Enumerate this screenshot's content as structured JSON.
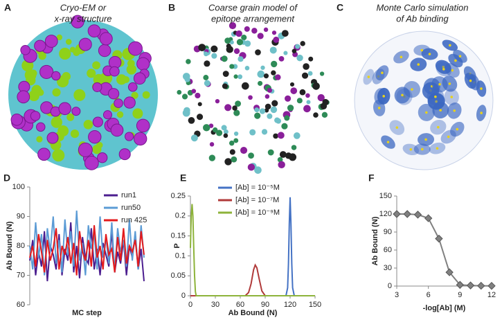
{
  "figure": {
    "panels": [
      {
        "label": "A",
        "caption": [
          "Cryo-EM or",
          "x-ray structure"
        ]
      },
      {
        "label": "B",
        "caption": [
          "Coarse grain model of",
          "epitope arrangement"
        ]
      },
      {
        "label": "C",
        "caption": [
          "Monte Carlo  simulation",
          "of Ab binding"
        ]
      }
    ]
  },
  "chart_data": [
    {
      "type": "line",
      "panel_label": "D",
      "x_label": "MC step",
      "y_label": "Ab Bound (N)",
      "ylim": [
        60,
        100
      ],
      "yticks": [
        60,
        70,
        80,
        90,
        100
      ],
      "legend": "top-right",
      "series": [
        {
          "name": "run1",
          "color": "#4b1d8f",
          "values": [
            75,
            82,
            70,
            78,
            73,
            85,
            68,
            80,
            77,
            72,
            84,
            70,
            79,
            75,
            88,
            71,
            80,
            69,
            83,
            76,
            74,
            86,
            72,
            79,
            70,
            81,
            77,
            73,
            85,
            71,
            78,
            74,
            82,
            70,
            80,
            76,
            84,
            72,
            79,
            68
          ]
        },
        {
          "name": "run50",
          "color": "#5b9bd5",
          "values": [
            80,
            72,
            88,
            76,
            84,
            70,
            86,
            78,
            90,
            74,
            82,
            71,
            89,
            77,
            85,
            73,
            92,
            75,
            81,
            70,
            87,
            79,
            84,
            72,
            90,
            76,
            83,
            74,
            88,
            71,
            86,
            78,
            82,
            73,
            89,
            75,
            85,
            72,
            87,
            76
          ]
        },
        {
          "name": "run 425",
          "color": "#e31a1c",
          "values": [
            76,
            80,
            73,
            84,
            78,
            71,
            82,
            75,
            79,
            86,
            72,
            80,
            77,
            83,
            74,
            81,
            70,
            85,
            78,
            75,
            82,
            73,
            87,
            76,
            80,
            72,
            84,
            77,
            79,
            71,
            83,
            75,
            86,
            74,
            80,
            78,
            82,
            73,
            85,
            77
          ]
        }
      ]
    },
    {
      "type": "line",
      "panel_label": "E",
      "x_label": "Ab Bound (N)",
      "y_label": "P",
      "xlim": [
        0,
        150
      ],
      "xticks": [
        0,
        30,
        60,
        90,
        120,
        150
      ],
      "ylim": [
        0,
        0.25
      ],
      "yticks": [
        0,
        0.05,
        0.1,
        0.15,
        0.2,
        0.25
      ],
      "legend": "top-left",
      "series": [
        {
          "name": "[Ab] = 10⁻⁵M",
          "color": "#4472c4",
          "x": [
            0,
            115,
            117,
            118,
            119,
            120,
            121,
            122,
            123,
            125,
            150
          ],
          "values": [
            0,
            0,
            0.02,
            0.08,
            0.18,
            0.247,
            0.18,
            0.08,
            0.02,
            0,
            0
          ]
        },
        {
          "name": "[Ab] = 10⁻⁷M",
          "color": "#b03a3a",
          "x": [
            0,
            66,
            70,
            73,
            76,
            78,
            80,
            83,
            86,
            90,
            150
          ],
          "values": [
            0,
            0,
            0.008,
            0.03,
            0.065,
            0.077,
            0.07,
            0.04,
            0.012,
            0,
            0
          ]
        },
        {
          "name": "[Ab] = 10⁻⁹M",
          "color": "#8db33a",
          "x": [
            0,
            1,
            2,
            3,
            4,
            5,
            6,
            7,
            150
          ],
          "values": [
            0.12,
            0.2,
            0.23,
            0.2,
            0.12,
            0.05,
            0.01,
            0,
            0
          ]
        }
      ]
    },
    {
      "type": "line",
      "panel_label": "F",
      "x_label": "-log[Ab] (M)",
      "y_label": "Ab Bound (N)",
      "xlim": [
        3,
        12
      ],
      "xticks": [
        3,
        6,
        9,
        12
      ],
      "ylim": [
        0,
        150
      ],
      "yticks": [
        0,
        30,
        60,
        90,
        120,
        150
      ],
      "marker": "diamond",
      "series": [
        {
          "color": "#808080",
          "x": [
            3,
            4,
            5,
            6,
            7,
            8,
            9,
            10,
            11,
            12
          ],
          "values": [
            120,
            120,
            119,
            113,
            79,
            23,
            2,
            1,
            0.5,
            0.3
          ]
        }
      ]
    }
  ]
}
